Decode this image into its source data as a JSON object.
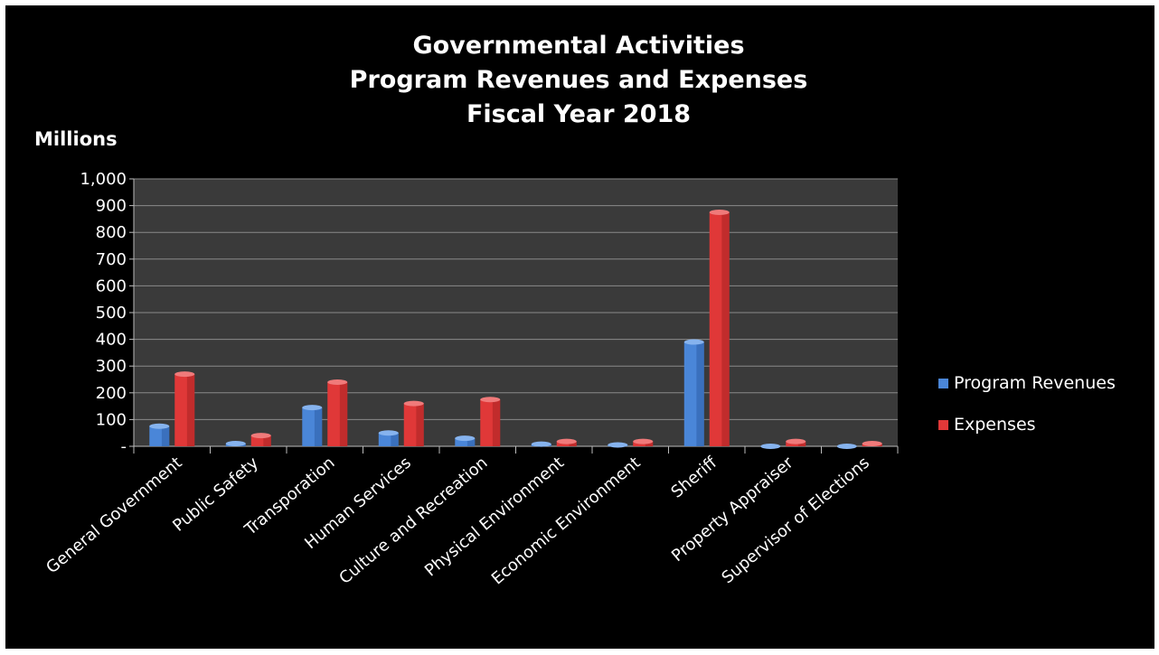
{
  "chart_data": {
    "type": "bar",
    "title": [
      "Governmental Activities",
      "Program Revenues and Expenses",
      "Fiscal Year 2018"
    ],
    "ylabel": "Millions",
    "ylim": [
      0,
      1000
    ],
    "yticks": [
      {
        "value": 0,
        "label": "-"
      },
      {
        "value": 100,
        "label": "100"
      },
      {
        "value": 200,
        "label": "200"
      },
      {
        "value": 300,
        "label": "300"
      },
      {
        "value": 400,
        "label": "400"
      },
      {
        "value": 500,
        "label": "500"
      },
      {
        "value": 600,
        "label": "600"
      },
      {
        "value": 700,
        "label": "700"
      },
      {
        "value": 800,
        "label": "800"
      },
      {
        "value": 900,
        "label": "900"
      },
      {
        "value": 1000,
        "label": "1,000"
      }
    ],
    "categories": [
      "General Government",
      "Public Safety",
      "Transporation",
      "Human Services",
      "Culture and Recreation",
      "Physical Environment",
      "Economic Environment",
      "Sheriff",
      "Property Appraiser",
      "Supervisor of Elections"
    ],
    "series": [
      {
        "name": "Program Revenues",
        "color": "#4a86d8",
        "values": [
          75,
          10,
          145,
          50,
          30,
          8,
          5,
          390,
          0,
          0
        ]
      },
      {
        "name": "Expenses",
        "color": "#e03838",
        "values": [
          270,
          40,
          240,
          160,
          175,
          18,
          18,
          875,
          18,
          10
        ]
      }
    ],
    "grid": true,
    "legend": "right"
  }
}
